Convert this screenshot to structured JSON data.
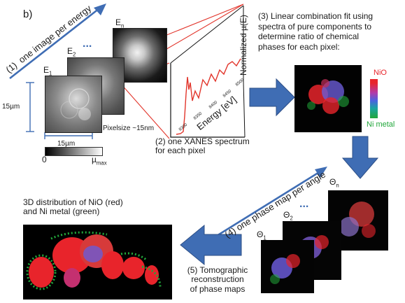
{
  "panel_label": "b)",
  "step1_label": "(1)",
  "step1_text": "one image per energy",
  "energy_frames": [
    {
      "base": "E",
      "sub": "1"
    },
    {
      "base": "E",
      "sub": "2"
    },
    {
      "base": "E",
      "sub": "n"
    }
  ],
  "ellipsis": "...",
  "scale_vertical": "15µm",
  "scale_horizontal": "15µm",
  "pixelsize": "Pixelsize ~15nm",
  "colorbar_min": "0",
  "colorbar_max_base": "µ",
  "colorbar_max_sub": "max",
  "spectrum_ylabel": "Normalized µ(E)",
  "spectrum_xlabel": "Energy [eV]",
  "spectrum_ticks": [
    "8300",
    "8350",
    "8400",
    "8450",
    "8500"
  ],
  "step2_text": "(2)  one XANES spectrum\nfor each pixel",
  "step3_text": "(3) Linear combination fit using\nspectra of pure components to\ndetermine ratio of chemical\nphases for each pixel:",
  "legend_top": "NiO",
  "legend_bottom": "Ni metal",
  "colors": {
    "nio": "#e8242b",
    "ni_metal": "#22a73b",
    "arrow": "#3f6db4",
    "arrow_edge": "#2d4f86",
    "blue_mix": "#6a5bd6"
  },
  "step4_label": "(4)",
  "step4_text": "one phase map per angle",
  "angle_frames": [
    {
      "base": "Θ",
      "sub": "1"
    },
    {
      "base": "Θ",
      "sub": "2"
    },
    {
      "base": "Θ",
      "sub": "n"
    }
  ],
  "result_title": "3D distribution of NiO (red)\nand Ni metal (green)",
  "step5_text": "(5) Tomographic\nreconstruction\nof phase maps"
}
